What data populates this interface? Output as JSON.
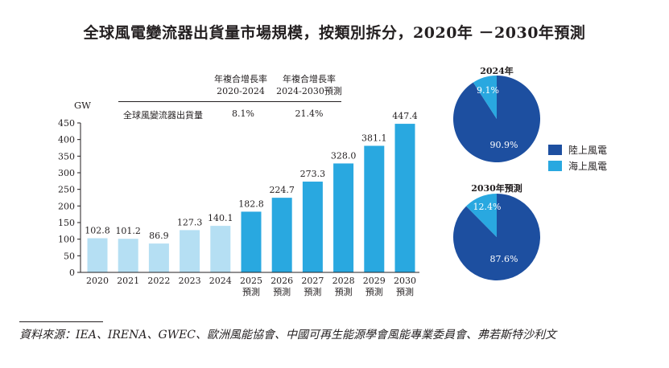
{
  "title": "全球風電變流器出貨量市場規模，按類別拆分，2020年 －2030年預測",
  "cagr_table": {
    "headers": [
      {
        "line1": "年複合增長率",
        "line2": "2020-2024"
      },
      {
        "line1": "年複合增長率",
        "line2": "2024-2030預測"
      }
    ],
    "row_label": "全球風變流器出貨量",
    "values": [
      "8.1%",
      "21.4%"
    ]
  },
  "chart_data": [
    {
      "type": "bar",
      "title": "",
      "xlabel": "",
      "ylabel": "GW",
      "ylim": [
        0,
        450
      ],
      "yticks": [
        0,
        50,
        100,
        150,
        200,
        250,
        300,
        350,
        400,
        450
      ],
      "categories": [
        "2020",
        "2021",
        "2022",
        "2023",
        "2024",
        "2025\n預測",
        "2026\n預測",
        "2027\n預測",
        "2028\n預測",
        "2029\n預測",
        "2030\n預測"
      ],
      "category_lines": [
        [
          "2020"
        ],
        [
          "2021"
        ],
        [
          "2022"
        ],
        [
          "2023"
        ],
        [
          "2024"
        ],
        [
          "2025",
          "預測"
        ],
        [
          "2026",
          "預測"
        ],
        [
          "2027",
          "預測"
        ],
        [
          "2028",
          "預測"
        ],
        [
          "2029",
          "預測"
        ],
        [
          "2030",
          "預測"
        ]
      ],
      "values": [
        102.8,
        101.2,
        86.9,
        127.3,
        140.1,
        182.8,
        224.7,
        273.3,
        328.0,
        381.1,
        447.4
      ],
      "value_labels": [
        "102.8",
        "101.2",
        "86.9",
        "127.3",
        "140.1",
        "182.8",
        "224.7",
        "273.3",
        "328.0",
        "381.1",
        "447.4"
      ],
      "historical_color": "#b5dff3",
      "forecast_color": "#29a8e0",
      "forecast_start_index": 5,
      "grid": false
    },
    {
      "type": "pie",
      "title": "2024年",
      "labels": [
        "陸上風電",
        "海上風電"
      ],
      "values": [
        90.9,
        9.1
      ],
      "value_labels": [
        "90.9%",
        "9.1%"
      ],
      "colors": [
        "#1d4fa0",
        "#29a8e0"
      ]
    },
    {
      "type": "pie",
      "title": "2030年預測",
      "labels": [
        "陸上風電",
        "海上風電"
      ],
      "values": [
        87.6,
        12.4
      ],
      "value_labels": [
        "87.6%",
        "12.4%"
      ],
      "colors": [
        "#1d4fa0",
        "#29a8e0"
      ]
    }
  ],
  "legend": {
    "placement": "right",
    "items": [
      {
        "label": "陸上風電",
        "color": "#1d4fa0"
      },
      {
        "label": "海上風電",
        "color": "#29a8e0"
      }
    ]
  },
  "source": "資料來源：IEA、IRENA、GWEC、歐洲風能協會、中國可再生能源學會風能專業委員會、弗若斯特沙利文"
}
